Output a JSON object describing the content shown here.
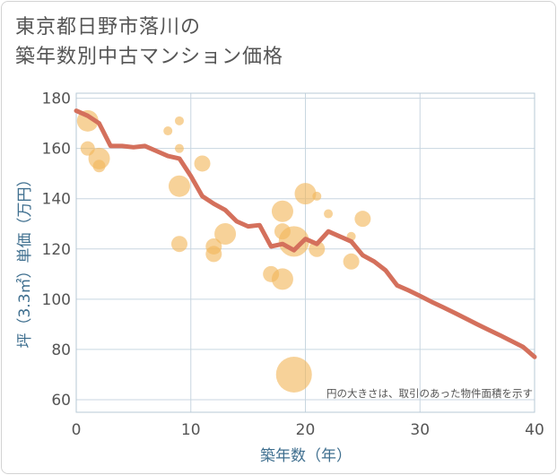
{
  "title_line1": "東京都日野市落川の",
  "title_line2": "築年数別中古マンション価格",
  "chart_data": {
    "type": "scatter",
    "xlabel": "築年数（年）",
    "ylabel": "坪（3.3㎡）単価（万円）",
    "xlim": [
      0,
      40
    ],
    "ylim": [
      55,
      182
    ],
    "xticks": [
      0,
      10,
      20,
      30,
      40
    ],
    "yticks": [
      60,
      80,
      100,
      120,
      140,
      160,
      180
    ],
    "grid": true,
    "annotation": "円の大きさは、取引のあった物件面積を示す",
    "colors": {
      "bubble": "#f2b75a",
      "line": "#d4705c",
      "grid": "#c8d6e0"
    },
    "bubbles": [
      {
        "x": 1,
        "y": 171,
        "size": 12
      },
      {
        "x": 1,
        "y": 160,
        "size": 8
      },
      {
        "x": 2,
        "y": 153,
        "size": 7
      },
      {
        "x": 2,
        "y": 156,
        "size": 12
      },
      {
        "x": 8,
        "y": 167,
        "size": 5
      },
      {
        "x": 9,
        "y": 171,
        "size": 5
      },
      {
        "x": 9,
        "y": 160,
        "size": 5
      },
      {
        "x": 9,
        "y": 145,
        "size": 12
      },
      {
        "x": 9,
        "y": 122,
        "size": 9
      },
      {
        "x": 11,
        "y": 154,
        "size": 9
      },
      {
        "x": 12,
        "y": 121,
        "size": 9
      },
      {
        "x": 12,
        "y": 118,
        "size": 9
      },
      {
        "x": 13,
        "y": 126,
        "size": 12
      },
      {
        "x": 17,
        "y": 110,
        "size": 9
      },
      {
        "x": 18,
        "y": 135,
        "size": 12
      },
      {
        "x": 18,
        "y": 127,
        "size": 9
      },
      {
        "x": 18,
        "y": 108,
        "size": 12
      },
      {
        "x": 19,
        "y": 123,
        "size": 17
      },
      {
        "x": 19,
        "y": 70,
        "size": 20
      },
      {
        "x": 20,
        "y": 142,
        "size": 12
      },
      {
        "x": 21,
        "y": 141,
        "size": 5
      },
      {
        "x": 21,
        "y": 120,
        "size": 9
      },
      {
        "x": 22,
        "y": 134,
        "size": 5
      },
      {
        "x": 24,
        "y": 125,
        "size": 5
      },
      {
        "x": 24,
        "y": 115,
        "size": 9
      },
      {
        "x": 25,
        "y": 132,
        "size": 9
      }
    ],
    "line": {
      "x": [
        0,
        1,
        2,
        3,
        4,
        5,
        6,
        7,
        8,
        9,
        10,
        11,
        12,
        13,
        14,
        15,
        16,
        17,
        18,
        19,
        20,
        21,
        22,
        23,
        24,
        25,
        26,
        27,
        28,
        29,
        30,
        31,
        32,
        33,
        34,
        35,
        36,
        37,
        38,
        39,
        40
      ],
      "y": [
        175,
        173,
        170,
        161,
        161,
        160.5,
        161,
        159,
        157,
        156,
        149,
        141,
        138,
        135.5,
        131,
        129,
        129.5,
        121,
        122,
        119.5,
        124,
        122,
        127,
        125,
        123,
        117.5,
        115,
        111.5,
        105.5,
        103.5,
        101.3,
        99,
        96.8,
        94.6,
        92.3,
        90,
        87.8,
        85.6,
        83.3,
        81,
        77
      ]
    }
  }
}
